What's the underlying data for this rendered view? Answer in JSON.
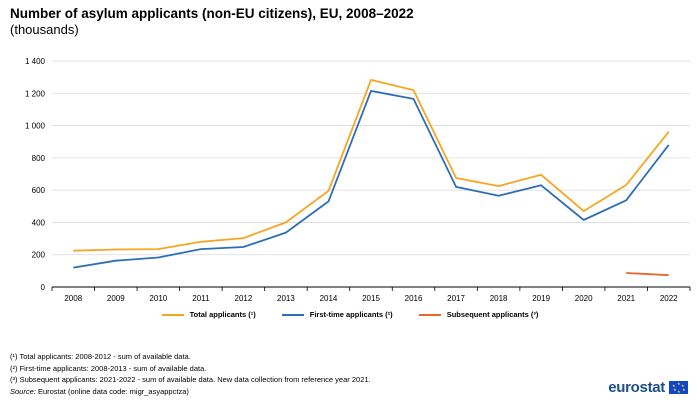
{
  "header": {
    "title": "Number of asylum applicants (non-EU citizens), EU, 2008–2022",
    "subtitle": "(thousands)"
  },
  "chart_data": {
    "type": "line",
    "x": [
      "2008",
      "2009",
      "2010",
      "2011",
      "2012",
      "2013",
      "2014",
      "2015",
      "2016",
      "2017",
      "2018",
      "2019",
      "2020",
      "2021",
      "2022"
    ],
    "series": [
      {
        "name": "Total applicants (¹)",
        "color": "#f5a623",
        "values": [
          225,
          232,
          235,
          280,
          303,
          400,
          595,
          1283,
          1220,
          675,
          625,
          695,
          470,
          632,
          962
        ]
      },
      {
        "name": "First-time applicants (²)",
        "color": "#2e6eb4",
        "values": [
          120,
          163,
          183,
          235,
          248,
          337,
          530,
          1215,
          1165,
          620,
          565,
          630,
          415,
          537,
          880
        ]
      },
      {
        "name": "Subsequent applicants (³)",
        "color": "#e8662c",
        "values": [
          null,
          null,
          null,
          null,
          null,
          null,
          null,
          null,
          null,
          null,
          null,
          null,
          null,
          87,
          73
        ]
      }
    ],
    "yticks": [
      0,
      200,
      400,
      600,
      800,
      1000,
      1200,
      1400
    ],
    "ytick_labels": [
      "0",
      "200",
      "400",
      "600",
      "800",
      "1 000",
      "1 200",
      "1 400"
    ],
    "ylim": [
      0,
      1400
    ],
    "grid": true,
    "legend_position": "bottom"
  },
  "footnotes": [
    "(¹) Total applicants: 2008-2012  - sum of available data.",
    "(²) First-time applicants: 2008-2013 - sum of available data.",
    "(³) Subsequent applicants: 2021-2022  - sum of available data. New data collection from reference year 2021."
  ],
  "source": {
    "label": "Source:",
    "text": " Eurostat (online data code: migr_asyappctza)"
  },
  "logo": {
    "text": "eurostat",
    "icon": "eu-flag-icon"
  }
}
